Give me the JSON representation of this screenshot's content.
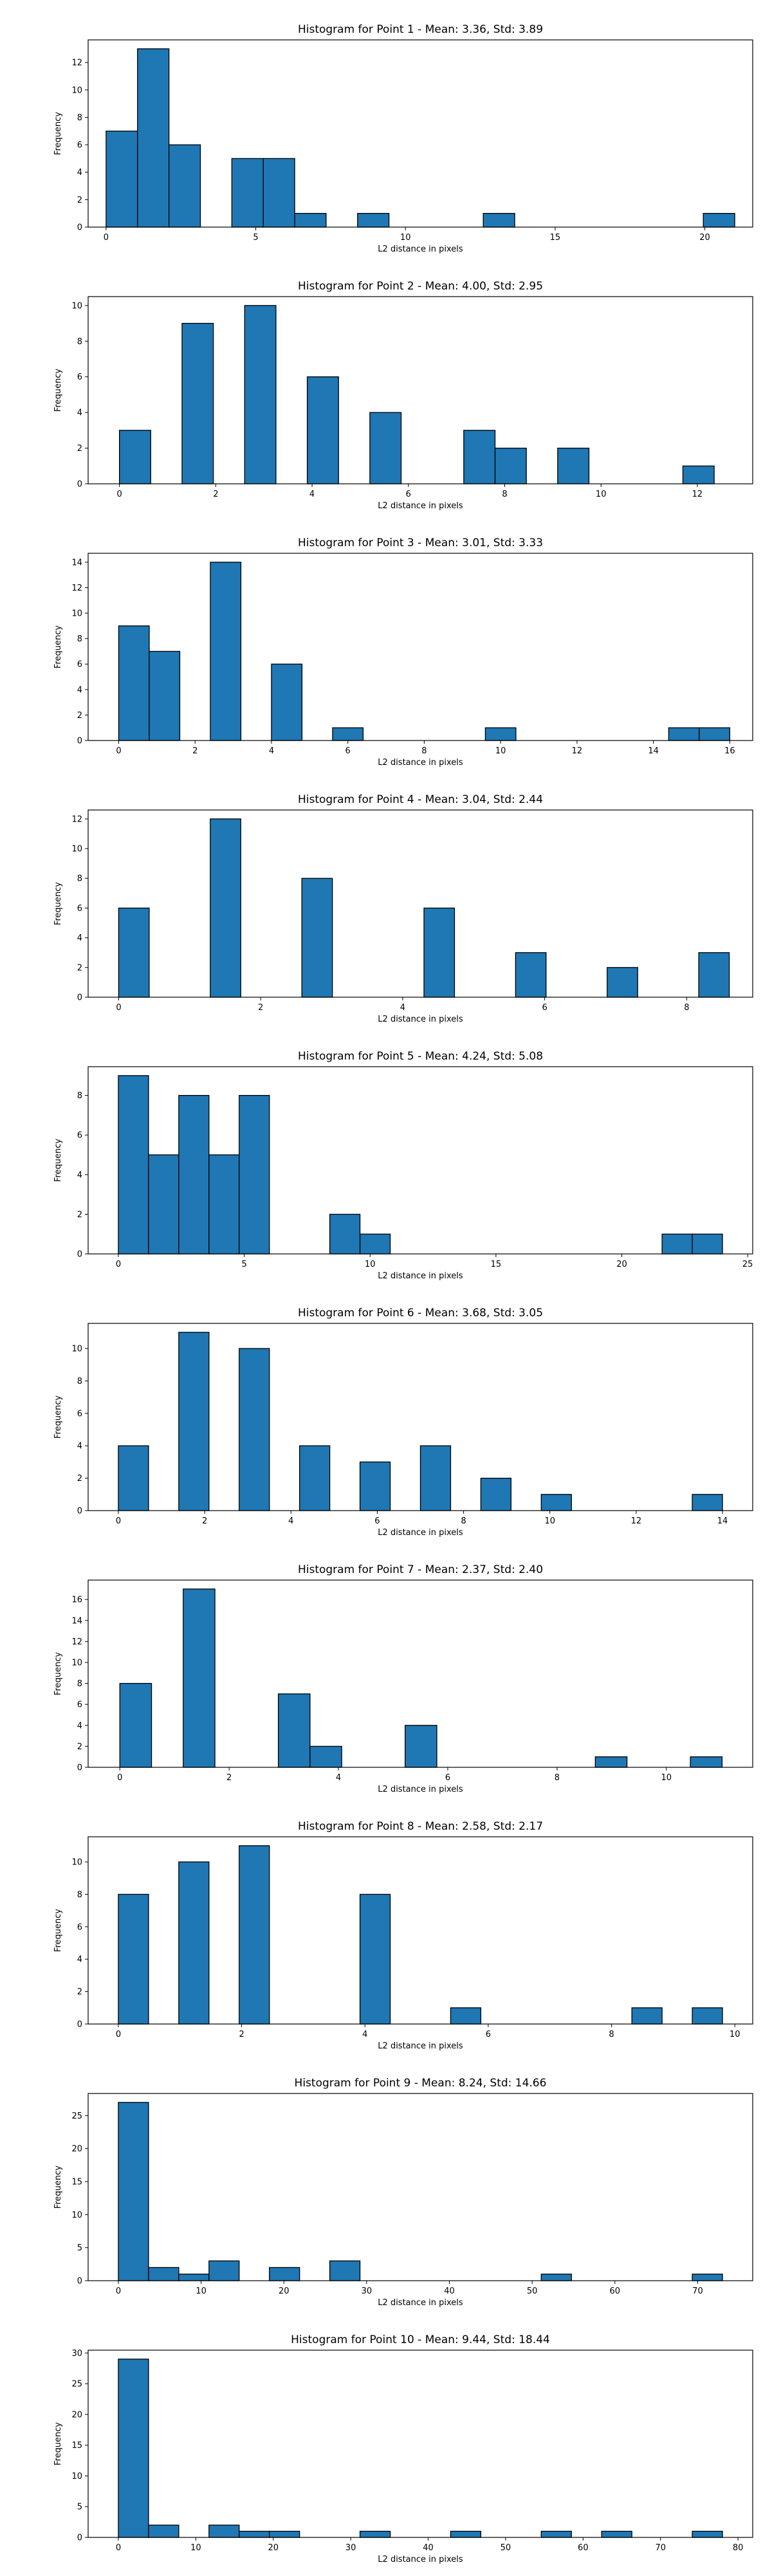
{
  "colors": {
    "bar_fill": "#1f77b4",
    "bar_edge": "#000000",
    "axis": "#000000",
    "background": "#ffffff"
  },
  "chart_data": [
    {
      "type": "bar",
      "title": "Histogram for Point 1 - Mean: 3.36, Std: 3.89",
      "xlabel": "L2 distance in pixels",
      "ylabel": "Frequency",
      "xlim": [
        -0.6,
        21.6
      ],
      "ylim": [
        0,
        13.65
      ],
      "xticks": [
        0,
        5,
        10,
        15,
        20
      ],
      "yticks": [
        0,
        2,
        4,
        6,
        8,
        10,
        12
      ],
      "bin_width": 1.05,
      "bin_starts": [
        0,
        1.05,
        2.1,
        4.2,
        5.25,
        6.3,
        8.4,
        12.6,
        19.95
      ],
      "values": [
        7,
        13,
        6,
        5,
        5,
        1,
        1,
        1,
        1
      ]
    },
    {
      "type": "bar",
      "title": "Histogram for Point 2 - Mean: 4.00, Std: 2.95",
      "xlabel": "L2 distance in pixels",
      "ylabel": "Frequency",
      "xlim": [
        -0.65,
        13.15
      ],
      "ylim": [
        0,
        10.5
      ],
      "xticks": [
        0,
        2,
        4,
        6,
        8,
        10,
        12
      ],
      "yticks": [
        0,
        2,
        4,
        6,
        8,
        10
      ],
      "bin_width": 0.65,
      "bin_starts": [
        0,
        1.3,
        2.6,
        3.9,
        5.2,
        7.15,
        7.8,
        9.1,
        11.7
      ],
      "values": [
        3,
        9,
        10,
        6,
        4,
        3,
        2,
        2,
        1
      ]
    },
    {
      "type": "bar",
      "title": "Histogram for Point 3 - Mean: 3.01, Std: 3.33",
      "xlabel": "L2 distance in pixels",
      "ylabel": "Frequency",
      "xlim": [
        -0.8,
        16.6
      ],
      "ylim": [
        0,
        14.7
      ],
      "xticks": [
        0,
        2,
        4,
        6,
        8,
        10,
        12,
        14,
        16
      ],
      "yticks": [
        0,
        2,
        4,
        6,
        8,
        10,
        12,
        14
      ],
      "bin_width": 0.8,
      "bin_starts": [
        0,
        0.8,
        2.4,
        4.0,
        5.6,
        9.6,
        14.4,
        15.2
      ],
      "values": [
        9,
        7,
        14,
        6,
        1,
        1,
        1,
        1
      ]
    },
    {
      "type": "bar",
      "title": "Histogram for Point 4 - Mean: 3.04, Std: 2.44",
      "xlabel": "L2 distance in pixels",
      "ylabel": "Frequency",
      "xlim": [
        -0.43,
        8.93
      ],
      "ylim": [
        0,
        12.6
      ],
      "xticks": [
        0,
        2,
        4,
        6,
        8
      ],
      "yticks": [
        0,
        2,
        4,
        6,
        8,
        10,
        12
      ],
      "bin_width": 0.43,
      "bin_starts": [
        0,
        1.29,
        2.58,
        4.3,
        5.59,
        6.88,
        8.17
      ],
      "values": [
        6,
        12,
        8,
        6,
        3,
        2,
        3
      ]
    },
    {
      "type": "bar",
      "title": "Histogram for Point 5 - Mean: 4.24, Std: 5.08",
      "xlabel": "L2 distance in pixels",
      "ylabel": "Frequency",
      "xlim": [
        -1.2,
        25.2
      ],
      "ylim": [
        0,
        9.45
      ],
      "xticks": [
        0,
        5,
        10,
        15,
        20,
        25
      ],
      "yticks": [
        0,
        2,
        4,
        6,
        8
      ],
      "bin_width": 1.2,
      "bin_starts": [
        0,
        1.2,
        2.4,
        3.6,
        4.8,
        8.4,
        9.6,
        21.6,
        22.8
      ],
      "values": [
        9,
        5,
        8,
        5,
        8,
        2,
        1,
        1,
        1
      ]
    },
    {
      "type": "bar",
      "title": "Histogram for Point 6 - Mean: 3.68, Std: 3.05",
      "xlabel": "L2 distance in pixels",
      "ylabel": "Frequency",
      "xlim": [
        -0.7,
        14.7
      ],
      "ylim": [
        0,
        11.55
      ],
      "xticks": [
        0,
        2,
        4,
        6,
        8,
        10,
        12,
        14
      ],
      "yticks": [
        0,
        2,
        4,
        6,
        8,
        10
      ],
      "bin_width": 0.7,
      "bin_starts": [
        0,
        1.4,
        2.8,
        4.2,
        5.6,
        7.0,
        8.4,
        9.8,
        13.3
      ],
      "values": [
        4,
        11,
        10,
        4,
        3,
        4,
        2,
        1,
        1
      ]
    },
    {
      "type": "bar",
      "title": "Histogram for Point 7 - Mean: 2.37, Std: 2.40",
      "xlabel": "L2 distance in pixels",
      "ylabel": "Frequency",
      "xlim": [
        -0.58,
        11.58
      ],
      "ylim": [
        0,
        17.85
      ],
      "xticks": [
        0,
        2,
        4,
        6,
        8,
        10
      ],
      "yticks": [
        0,
        2,
        4,
        6,
        8,
        10,
        12,
        14,
        16
      ],
      "bin_width": 0.58,
      "bin_starts": [
        0,
        1.16,
        2.9,
        3.48,
        5.22,
        8.7,
        10.44
      ],
      "values": [
        8,
        17,
        7,
        2,
        4,
        1,
        1
      ]
    },
    {
      "type": "bar",
      "title": "Histogram for Point 8 - Mean: 2.58, Std: 2.17",
      "xlabel": "L2 distance in pixels",
      "ylabel": "Frequency",
      "xlim": [
        -0.49,
        10.29
      ],
      "ylim": [
        0,
        11.55
      ],
      "xticks": [
        0,
        2,
        4,
        6,
        8,
        10
      ],
      "yticks": [
        0,
        2,
        4,
        6,
        8,
        10
      ],
      "bin_width": 0.49,
      "bin_starts": [
        0,
        0.98,
        1.96,
        3.92,
        5.39,
        8.33,
        9.31
      ],
      "values": [
        8,
        10,
        11,
        8,
        1,
        1,
        1
      ]
    },
    {
      "type": "bar",
      "title": "Histogram for Point 9 - Mean: 8.24, Std: 14.66",
      "xlabel": "L2 distance in pixels",
      "ylabel": "Frequency",
      "xlim": [
        -3.65,
        76.65
      ],
      "ylim": [
        0,
        28.35
      ],
      "xticks": [
        0,
        10,
        20,
        30,
        40,
        50,
        60,
        70
      ],
      "yticks": [
        0,
        5,
        10,
        15,
        20,
        25
      ],
      "bin_width": 3.65,
      "bin_starts": [
        0,
        3.65,
        7.3,
        10.95,
        18.25,
        25.55,
        51.1,
        69.35
      ],
      "values": [
        27,
        2,
        1,
        3,
        2,
        3,
        1,
        1
      ]
    },
    {
      "type": "bar",
      "title": "Histogram for Point 10 - Mean: 9.44, Std: 18.44",
      "xlabel": "L2 distance in pixels",
      "ylabel": "Frequency",
      "xlim": [
        -3.9,
        81.9
      ],
      "ylim": [
        0,
        30.45
      ],
      "xticks": [
        0,
        10,
        20,
        30,
        40,
        50,
        60,
        70,
        80
      ],
      "yticks": [
        0,
        5,
        10,
        15,
        20,
        25,
        30
      ],
      "bin_width": 3.9,
      "bin_starts": [
        0,
        3.9,
        11.7,
        15.6,
        19.5,
        31.2,
        42.9,
        54.6,
        62.4,
        74.1
      ],
      "values": [
        29,
        2,
        2,
        1,
        1,
        1,
        1,
        1,
        1,
        1
      ]
    }
  ]
}
